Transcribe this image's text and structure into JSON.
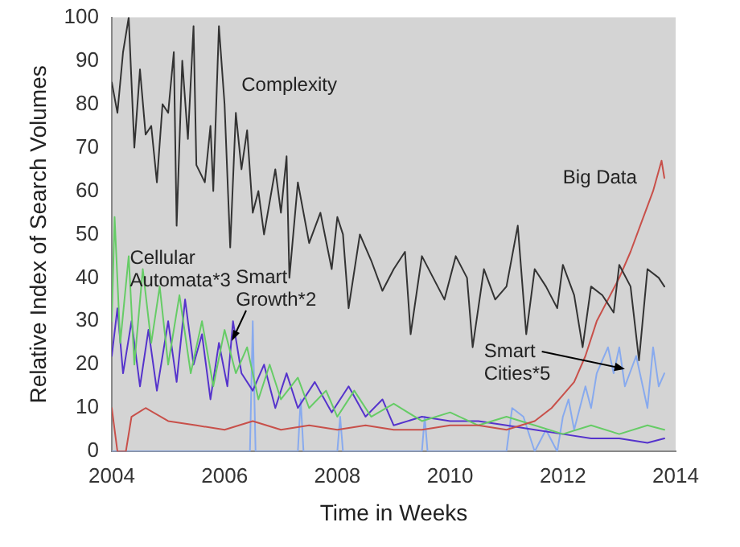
{
  "chart_data": {
    "type": "line",
    "xlabel": "Time in Weeks",
    "ylabel": "Relative Index of Search Volumes",
    "xlim": [
      2004,
      2014
    ],
    "xticks": [
      2004,
      2006,
      2008,
      2010,
      2012,
      2014
    ],
    "ylim": [
      0,
      100
    ],
    "yticks": [
      0,
      10,
      20,
      30,
      40,
      50,
      60,
      70,
      80,
      90,
      100
    ],
    "grid": false,
    "legend": false,
    "marker": "none",
    "line_style": "solid",
    "annotations": [
      "Complexity",
      "Big Data",
      "Cellular\nAutomata*3",
      "Smart\nGrowth*2",
      {
        "text": "Smart\nCities*5",
        "x": 2013.1,
        "y": 19
      }
    ],
    "series": [
      {
        "color": "#333333",
        "x": [
          2004.0,
          2004.1,
          2004.2,
          2004.3,
          2004.4,
          2004.5,
          2004.6,
          2004.7,
          2004.8,
          2004.9,
          2005.0,
          2005.1,
          2005.15,
          2005.25,
          2005.35,
          2005.45,
          2005.5,
          2005.65,
          2005.75,
          2005.8,
          2005.9,
          2006.0,
          2006.1,
          2006.2,
          2006.3,
          2006.4,
          2006.5,
          2006.6,
          2006.7,
          2006.9,
          2007.0,
          2007.1,
          2007.15,
          2007.3,
          2007.5,
          2007.7,
          2007.9,
          2008.0,
          2008.1,
          2008.2,
          2008.4,
          2008.6,
          2008.8,
          2009.0,
          2009.2,
          2009.3,
          2009.5,
          2009.7,
          2009.9,
          2010.1,
          2010.3,
          2010.4,
          2010.6,
          2010.8,
          2011.0,
          2011.2,
          2011.35,
          2011.5,
          2011.7,
          2011.9,
          2012.0,
          2012.2,
          2012.35,
          2012.5,
          2012.7,
          2012.9,
          2013.0,
          2013.2,
          2013.35,
          2013.5,
          2013.7,
          2013.8
        ],
        "values": [
          85,
          78,
          92,
          100,
          70,
          88,
          73,
          75,
          62,
          80,
          78,
          92,
          52,
          90,
          72,
          98,
          66,
          62,
          75,
          60,
          98,
          80,
          47,
          78,
          65,
          74,
          55,
          60,
          50,
          65,
          55,
          68,
          40,
          62,
          48,
          55,
          42,
          54,
          50,
          33,
          50,
          44,
          37,
          42,
          46,
          27,
          45,
          40,
          35,
          45,
          40,
          24,
          42,
          35,
          38,
          52,
          27,
          42,
          38,
          33,
          43,
          36,
          24,
          38,
          36,
          32,
          43,
          38,
          21,
          42,
          40,
          38
        ]
      },
      {
        "color": "#c8504a",
        "x": [
          2004.0,
          2004.1,
          2004.25,
          2004.35,
          2004.6,
          2005,
          2005.5,
          2006,
          2006.5,
          2007,
          2007.5,
          2008,
          2008.5,
          2009,
          2009.5,
          2010,
          2010.5,
          2011,
          2011.5,
          2011.8,
          2012.0,
          2012.2,
          2012.4,
          2012.6,
          2012.8,
          2013.0,
          2013.2,
          2013.4,
          2013.6,
          2013.75,
          2013.8
        ],
        "values": [
          10,
          0,
          0,
          8,
          10,
          7,
          6,
          5,
          7,
          5,
          6,
          5,
          6,
          5,
          5,
          6,
          6,
          5,
          7,
          10,
          13,
          16,
          22,
          30,
          35,
          40,
          46,
          53,
          60,
          67,
          63
        ]
      },
      {
        "color": "#66cc66",
        "x": [
          2004.0,
          2004.05,
          2004.15,
          2004.3,
          2004.4,
          2004.55,
          2004.7,
          2004.85,
          2005,
          2005.2,
          2005.4,
          2005.6,
          2005.8,
          2006,
          2006.2,
          2006.4,
          2006.6,
          2006.8,
          2007,
          2007.3,
          2007.5,
          2007.8,
          2008,
          2008.3,
          2008.6,
          2009,
          2009.5,
          2010,
          2010.5,
          2011,
          2011.5,
          2012,
          2012.5,
          2013,
          2013.5,
          2013.8
        ],
        "values": [
          30,
          54,
          25,
          45,
          20,
          42,
          25,
          38,
          20,
          36,
          18,
          30,
          15,
          28,
          18,
          24,
          12,
          20,
          12,
          17,
          10,
          14,
          8,
          14,
          8,
          11,
          7,
          9,
          6,
          8,
          6,
          4,
          6,
          4,
          6,
          5
        ]
      },
      {
        "color": "#5533cc",
        "x": [
          2004.0,
          2004.1,
          2004.2,
          2004.35,
          2004.5,
          2004.65,
          2004.8,
          2005,
          2005.15,
          2005.3,
          2005.45,
          2005.6,
          2005.75,
          2005.9,
          2006.05,
          2006.15,
          2006.3,
          2006.5,
          2006.7,
          2006.9,
          2007.1,
          2007.3,
          2007.6,
          2007.9,
          2008.2,
          2008.5,
          2008.8,
          2009,
          2009.5,
          2010,
          2010.5,
          2011,
          2011.5,
          2012,
          2012.5,
          2013,
          2013.5,
          2013.8
        ],
        "values": [
          22,
          33,
          18,
          30,
          15,
          28,
          14,
          30,
          16,
          35,
          20,
          27,
          12,
          25,
          15,
          30,
          18,
          14,
          20,
          10,
          18,
          10,
          16,
          9,
          15,
          8,
          12,
          6,
          8,
          7,
          7,
          6,
          5,
          4,
          3,
          3,
          2,
          3
        ]
      },
      {
        "color": "#88aaee",
        "x": [
          2004,
          2006.45,
          2006.5,
          2006.55,
          2007.3,
          2007.35,
          2007.4,
          2008,
          2008.05,
          2008.1,
          2009.5,
          2009.55,
          2009.6,
          2011,
          2011.1,
          2011.3,
          2011.5,
          2011.7,
          2011.9,
          2012.0,
          2012.1,
          2012.2,
          2012.4,
          2012.5,
          2012.6,
          2012.8,
          2012.9,
          2013.0,
          2013.1,
          2013.3,
          2013.5,
          2013.6,
          2013.7,
          2013.8
        ],
        "values": [
          0,
          0,
          30,
          0,
          0,
          12,
          0,
          0,
          8,
          0,
          0,
          8,
          0,
          0,
          10,
          8,
          0,
          5,
          0,
          8,
          12,
          5,
          15,
          10,
          18,
          24,
          18,
          24,
          15,
          22,
          10,
          24,
          15,
          18
        ]
      }
    ]
  }
}
